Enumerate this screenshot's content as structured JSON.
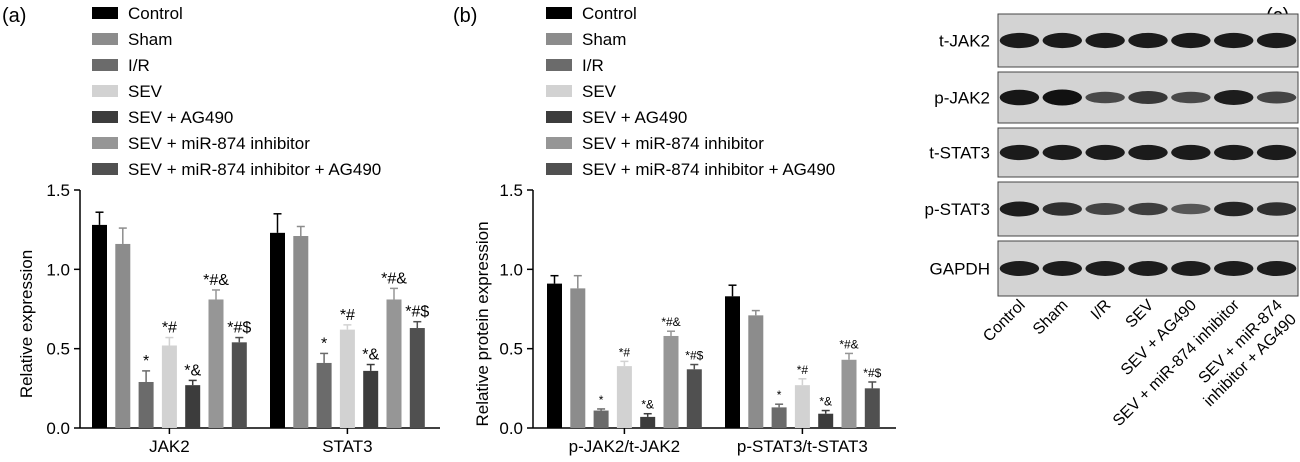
{
  "panels": [
    {
      "label": "(a)"
    },
    {
      "label": "(b)"
    },
    {
      "label": "(c)"
    }
  ],
  "legend": [
    {
      "name": "Control",
      "color": "#000000"
    },
    {
      "name": "Sham",
      "color": "#8c8c8c"
    },
    {
      "name": "I/R",
      "color": "#6b6b6b"
    },
    {
      "name": "SEV",
      "color": "#d2d2d2"
    },
    {
      "name": "SEV + AG490",
      "color": "#3c3c3c"
    },
    {
      "name": "SEV + miR-874 inhibitor",
      "color": "#969696"
    },
    {
      "name": "SEV + miR-874 inhibitor + AG490",
      "color": "#505050"
    }
  ],
  "chart_data": [
    {
      "type": "bar",
      "panel": "(a)",
      "ylabel": "Relative expression",
      "ylim": [
        0,
        1.5
      ],
      "yticks": [
        "0.0",
        "0.5",
        "1.0",
        "1.5"
      ],
      "categories": [
        "JAK2",
        "STAT3"
      ],
      "series": [
        {
          "name": "Control",
          "values": [
            1.28,
            1.23
          ],
          "errors": [
            0.08,
            0.12
          ],
          "labels": [
            "",
            ""
          ]
        },
        {
          "name": "Sham",
          "values": [
            1.16,
            1.21
          ],
          "errors": [
            0.1,
            0.06
          ],
          "labels": [
            "",
            ""
          ]
        },
        {
          "name": "I/R",
          "values": [
            0.29,
            0.41
          ],
          "errors": [
            0.07,
            0.06
          ],
          "labels": [
            "*",
            "*"
          ]
        },
        {
          "name": "SEV",
          "values": [
            0.52,
            0.62
          ],
          "errors": [
            0.05,
            0.03
          ],
          "labels": [
            "*#",
            "*#"
          ]
        },
        {
          "name": "SEV + AG490",
          "values": [
            0.27,
            0.36
          ],
          "errors": [
            0.03,
            0.04
          ],
          "labels": [
            "*&",
            "*&"
          ]
        },
        {
          "name": "SEV + miR-874 inhibitor",
          "values": [
            0.81,
            0.81
          ],
          "errors": [
            0.06,
            0.07
          ],
          "labels": [
            "*#&",
            "*#&"
          ]
        },
        {
          "name": "SEV + miR-874 inhibitor + AG490",
          "values": [
            0.54,
            0.63
          ],
          "errors": [
            0.03,
            0.04
          ],
          "labels": [
            "*#$",
            "*#$"
          ]
        }
      ]
    },
    {
      "type": "bar",
      "panel": "(b)",
      "ylabel": "Relative protein expression",
      "ylim": [
        0,
        1.5
      ],
      "yticks": [
        "0.0",
        "0.5",
        "1.0",
        "1.5"
      ],
      "categories": [
        "p-JAK2/t-JAK2",
        "p-STAT3/t-STAT3"
      ],
      "series": [
        {
          "name": "Control",
          "values": [
            0.91,
            0.83
          ],
          "errors": [
            0.05,
            0.07
          ],
          "labels": [
            "",
            ""
          ]
        },
        {
          "name": "Sham",
          "values": [
            0.88,
            0.71
          ],
          "errors": [
            0.08,
            0.03
          ],
          "labels": [
            "",
            ""
          ]
        },
        {
          "name": "I/R",
          "values": [
            0.11,
            0.13
          ],
          "errors": [
            0.01,
            0.02
          ],
          "labels": [
            "*",
            "*"
          ]
        },
        {
          "name": "SEV",
          "values": [
            0.39,
            0.27
          ],
          "errors": [
            0.03,
            0.04
          ],
          "labels": [
            "*#",
            "*#"
          ]
        },
        {
          "name": "SEV + AG490",
          "values": [
            0.07,
            0.09
          ],
          "errors": [
            0.02,
            0.02
          ],
          "labels": [
            "*&",
            "*&"
          ]
        },
        {
          "name": "SEV + miR-874 inhibitor",
          "values": [
            0.58,
            0.43
          ],
          "errors": [
            0.03,
            0.04
          ],
          "labels": [
            "*#&",
            "*#&"
          ]
        },
        {
          "name": "SEV + miR-874 inhibitor + AG490",
          "values": [
            0.37,
            0.25
          ],
          "errors": [
            0.03,
            0.04
          ],
          "labels": [
            "*#$",
            "*#$"
          ]
        }
      ]
    }
  ],
  "blot": {
    "rows": [
      {
        "label": "t-JAK2",
        "intensity": [
          0.92,
          0.92,
          0.92,
          0.92,
          0.92,
          0.92,
          0.92
        ]
      },
      {
        "label": "p-JAK2",
        "intensity": [
          0.95,
          1.0,
          0.55,
          0.7,
          0.55,
          0.9,
          0.6
        ]
      },
      {
        "label": "t-STAT3",
        "intensity": [
          0.92,
          0.92,
          0.92,
          0.92,
          0.92,
          0.92,
          0.92
        ]
      },
      {
        "label": "p-STAT3",
        "intensity": [
          0.9,
          0.75,
          0.6,
          0.65,
          0.45,
          0.85,
          0.75
        ]
      },
      {
        "label": "GAPDH",
        "intensity": [
          0.9,
          0.9,
          0.9,
          0.9,
          0.9,
          0.9,
          0.9
        ]
      }
    ],
    "lanes": [
      "Control",
      "Sham",
      "I/R",
      "SEV",
      "SEV + AG490",
      "SEV + miR-874 inhibitor",
      "SEV + miR-874\ninhibitor + AG490"
    ]
  }
}
